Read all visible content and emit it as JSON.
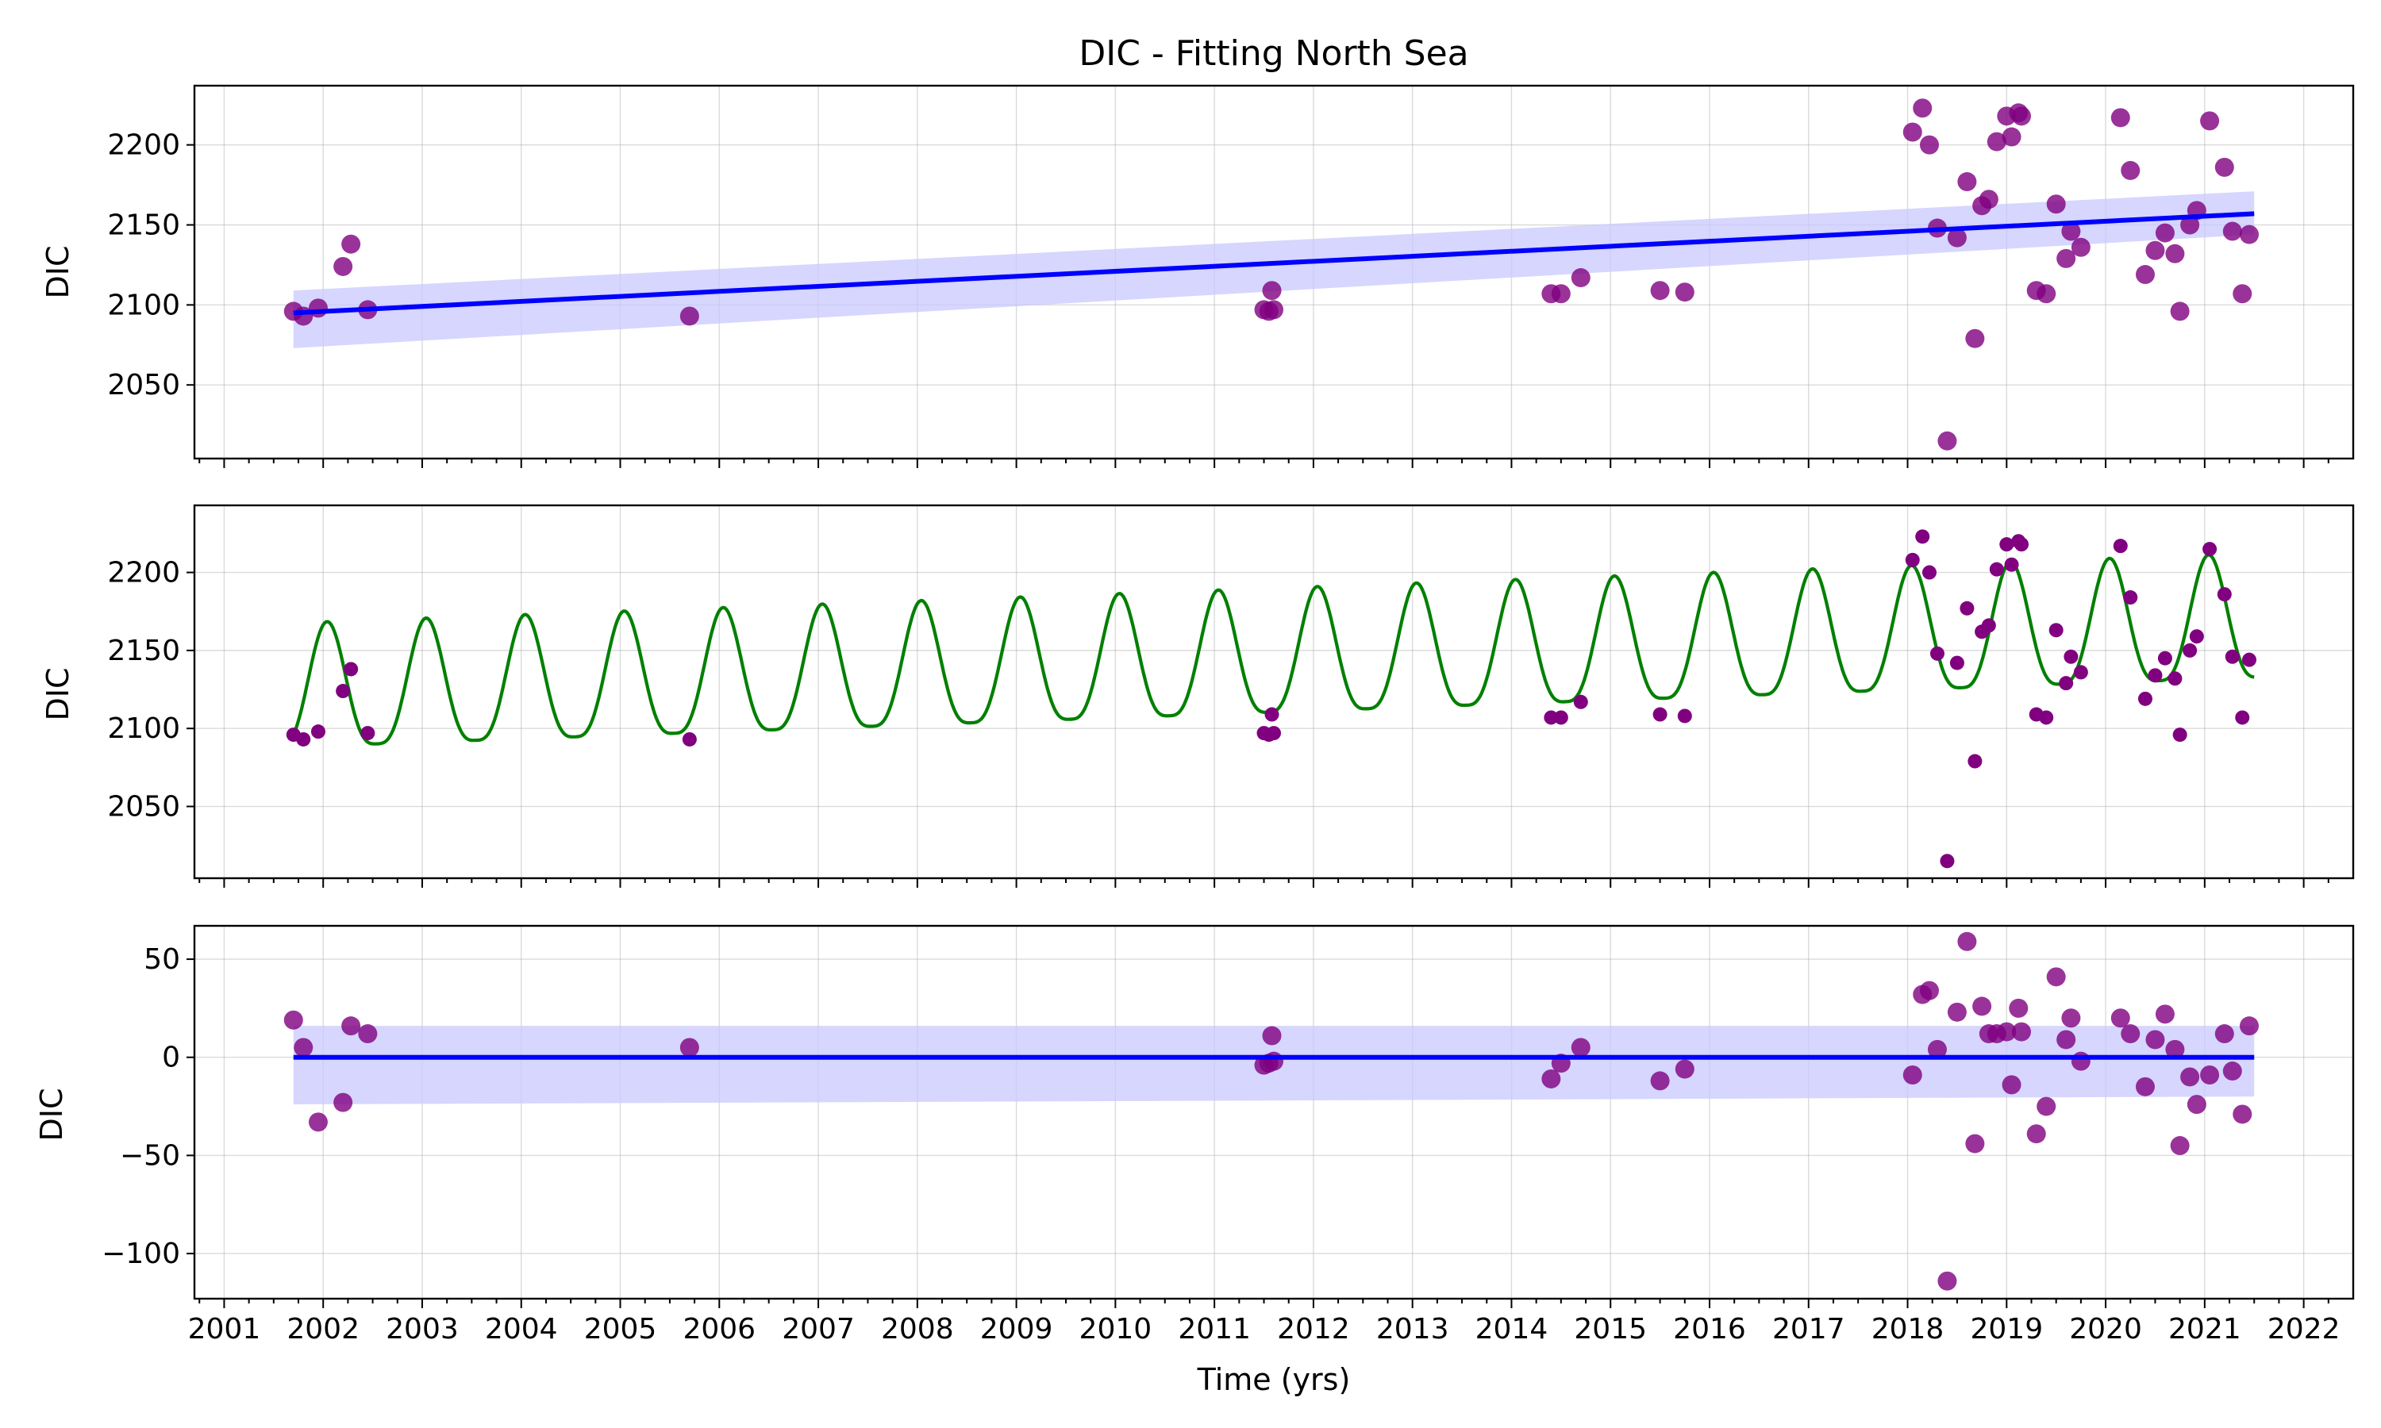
{
  "figure": {
    "title": "DIC - Fitting North Sea",
    "xlabel": "Time (yrs)"
  },
  "colors": {
    "points": "#800080",
    "trend": "#0000ff",
    "band": "#c8c8ff",
    "seasonal": "#008000"
  },
  "chart_data": [
    {
      "type": "scatter",
      "panel": "trend-fit",
      "title": "DIC - Fitting North Sea",
      "xlabel": "",
      "ylabel": "DIC",
      "xlim": [
        2000.7,
        2022.5
      ],
      "ylim": [
        2004,
        2237
      ],
      "yticks": [
        2050,
        2100,
        2150,
        2200
      ],
      "grid": true,
      "observations": {
        "x": [
          2001.7,
          2001.8,
          2001.95,
          2002.2,
          2002.28,
          2002.45,
          2005.7,
          2011.5,
          2011.55,
          2011.6,
          2011.58,
          2014.4,
          2014.5,
          2014.7,
          2015.5,
          2015.75,
          2018.05,
          2018.15,
          2018.22,
          2018.3,
          2018.4,
          2018.5,
          2018.6,
          2018.68,
          2018.75,
          2018.82,
          2018.9,
          2019.0,
          2019.05,
          2019.12,
          2019.15,
          2019.3,
          2019.4,
          2019.5,
          2019.6,
          2019.65,
          2019.75,
          2020.15,
          2020.25,
          2020.4,
          2020.5,
          2020.6,
          2020.7,
          2020.75,
          2020.85,
          2020.92,
          2021.05,
          2021.2,
          2021.28,
          2021.38,
          2021.45
        ],
        "y": [
          2096,
          2093,
          2098,
          2124,
          2138,
          2097,
          2093,
          2097,
          2096,
          2097,
          2109,
          2107,
          2107,
          2117,
          2109,
          2108,
          2208,
          2223,
          2200,
          2148,
          2015,
          2142,
          2177,
          2079,
          2162,
          2166,
          2202,
          2218,
          2205,
          2220,
          2218,
          2109,
          2107,
          2163,
          2129,
          2146,
          2136,
          2217,
          2184,
          2119,
          2134,
          2145,
          2132,
          2096,
          2150,
          2159,
          2215,
          2186,
          2146,
          2107,
          2144
        ]
      },
      "trend": {
        "x": [
          2001.7,
          2021.5
        ],
        "y": [
          2095,
          2157
        ],
        "band_upper": [
          2109,
          2171
        ],
        "band_lower": [
          2073,
          2144
        ]
      }
    },
    {
      "type": "scatter",
      "panel": "seasonal-fit",
      "xlabel": "",
      "ylabel": "DIC",
      "xlim": [
        2000.7,
        2022.5
      ],
      "ylim": [
        2004,
        2243
      ],
      "yticks": [
        2050,
        2100,
        2150,
        2200
      ],
      "grid": true,
      "model": {
        "x_range": [
          2001.7,
          2021.5
        ],
        "mean_start": 2128,
        "slope_per_year": 2.25,
        "amplitude": 53,
        "peak_phase": 0.04,
        "sharpness": 1.6
      }
    },
    {
      "type": "scatter",
      "panel": "residuals",
      "xlabel": "Time (yrs)",
      "ylabel": "DIC",
      "xlim": [
        2000.7,
        2022.5
      ],
      "ylim": [
        -123,
        67
      ],
      "yticks": [
        -100,
        -50,
        0,
        50
      ],
      "xticks": [
        2001,
        2002,
        2003,
        2004,
        2005,
        2006,
        2007,
        2008,
        2009,
        2010,
        2011,
        2012,
        2013,
        2014,
        2015,
        2016,
        2017,
        2018,
        2019,
        2020,
        2021,
        2022
      ],
      "grid": true,
      "residuals": {
        "x": [
          2001.7,
          2001.8,
          2001.95,
          2002.2,
          2002.28,
          2002.45,
          2005.7,
          2011.5,
          2011.55,
          2011.6,
          2011.58,
          2014.4,
          2014.5,
          2014.7,
          2015.5,
          2015.75,
          2018.05,
          2018.15,
          2018.22,
          2018.3,
          2018.4,
          2018.5,
          2018.6,
          2018.68,
          2018.75,
          2018.82,
          2018.9,
          2019.0,
          2019.05,
          2019.12,
          2019.15,
          2019.3,
          2019.4,
          2019.5,
          2019.6,
          2019.65,
          2019.75,
          2020.15,
          2020.25,
          2020.4,
          2020.5,
          2020.6,
          2020.7,
          2020.75,
          2020.85,
          2020.92,
          2021.05,
          2021.2,
          2021.28,
          2021.38,
          2021.45
        ],
        "y": [
          19,
          5,
          -33,
          -23,
          16,
          12,
          5,
          -4,
          -3,
          -2,
          11,
          -11,
          -3,
          5,
          -12,
          -6,
          -9,
          32,
          34,
          4,
          -114,
          23,
          59,
          -44,
          26,
          12,
          12,
          13,
          -14,
          25,
          13,
          -39,
          -25,
          41,
          9,
          20,
          -2,
          20,
          12,
          -15,
          9,
          22,
          4,
          -45,
          -10,
          -24,
          -9,
          12,
          -7,
          -29,
          16
        ]
      },
      "zero_line": {
        "x": [
          2001.7,
          2021.5
        ],
        "y": [
          0,
          0
        ],
        "band_upper": [
          16,
          16
        ],
        "band_lower": [
          -24,
          -20
        ]
      }
    }
  ]
}
